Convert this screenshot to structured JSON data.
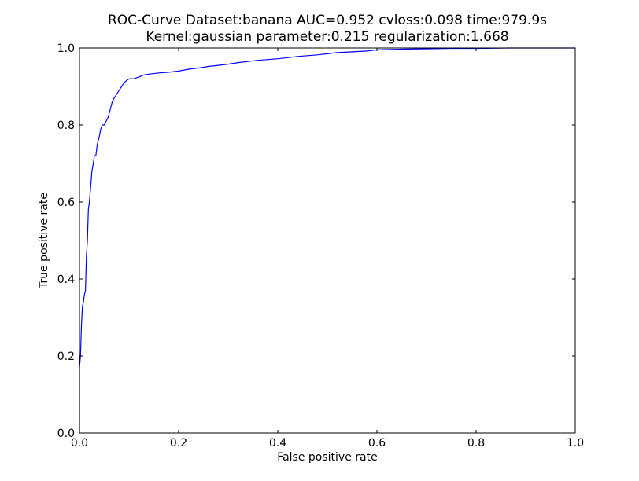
{
  "chart_data": {
    "type": "line",
    "title_line1": "ROC-Curve Dataset:banana AUC=0.952 cvloss:0.098 time:979.9s",
    "title_line2": "Kernel:gaussian parameter:0.215 regularization:1.668",
    "xlabel": "False positive rate",
    "ylabel": "True positive rate",
    "xlim": [
      0,
      1
    ],
    "ylim": [
      0,
      1
    ],
    "grid": false,
    "legend": "none",
    "x_ticks": [
      "0.0",
      "0.2",
      "0.4",
      "0.6",
      "0.8",
      "1.0"
    ],
    "y_ticks": [
      "0.0",
      "0.2",
      "0.4",
      "0.6",
      "0.8",
      "1.0"
    ],
    "line_color": "#0000ff",
    "series": [
      {
        "x": [
          0.0,
          0.0,
          0.002,
          0.004,
          0.006,
          0.008,
          0.01,
          0.012,
          0.014,
          0.016,
          0.018,
          0.02,
          0.022,
          0.025,
          0.028,
          0.03,
          0.033,
          0.036,
          0.04,
          0.043,
          0.046,
          0.05,
          0.054,
          0.058,
          0.062,
          0.066,
          0.07,
          0.075,
          0.08,
          0.085,
          0.09,
          0.095,
          0.1,
          0.105,
          0.11,
          0.12,
          0.13,
          0.14,
          0.16,
          0.18,
          0.2,
          0.22,
          0.24,
          0.26,
          0.28,
          0.3,
          0.32,
          0.34,
          0.36,
          0.38,
          0.4,
          0.42,
          0.44,
          0.46,
          0.48,
          0.5,
          0.52,
          0.55,
          0.58,
          0.6,
          0.62,
          0.65,
          0.7,
          0.75,
          0.8,
          0.87,
          1.0
        ],
        "y": [
          0.0,
          0.17,
          0.2,
          0.28,
          0.33,
          0.34,
          0.36,
          0.37,
          0.46,
          0.5,
          0.58,
          0.6,
          0.63,
          0.68,
          0.7,
          0.72,
          0.72,
          0.75,
          0.77,
          0.79,
          0.8,
          0.8,
          0.81,
          0.82,
          0.84,
          0.86,
          0.87,
          0.88,
          0.89,
          0.9,
          0.91,
          0.915,
          0.92,
          0.92,
          0.92,
          0.925,
          0.93,
          0.932,
          0.935,
          0.937,
          0.94,
          0.945,
          0.948,
          0.952,
          0.955,
          0.958,
          0.962,
          0.965,
          0.968,
          0.97,
          0.972,
          0.975,
          0.978,
          0.98,
          0.982,
          0.985,
          0.988,
          0.99,
          0.992,
          0.995,
          0.996,
          0.997,
          0.998,
          0.999,
          0.999,
          1.0,
          1.0
        ]
      }
    ]
  }
}
